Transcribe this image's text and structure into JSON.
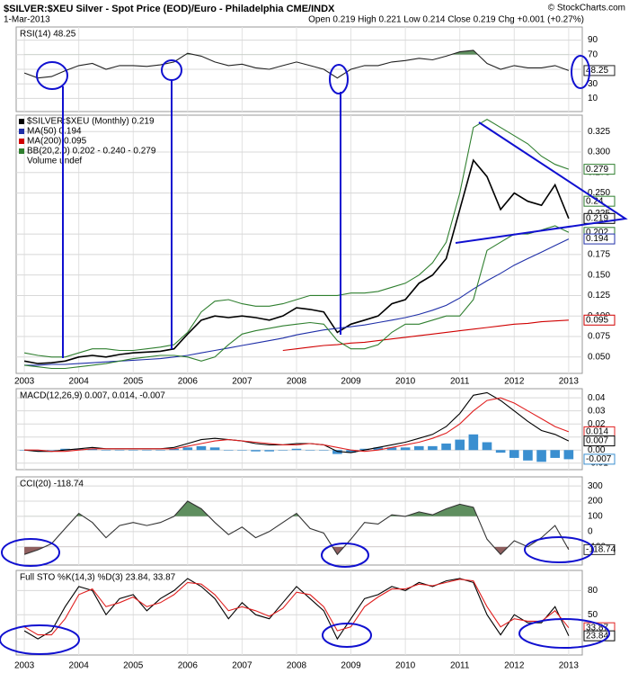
{
  "header": {
    "title": "$SILVER:$XEU Silver - Spot Price (EOD)/Euro - Philadelphia CME/INDX",
    "date": "1-Mar-2013",
    "quote": "Open 0.219 High 0.221 Low 0.214 Close 0.219 Chg +0.001 (+0.27%)",
    "credit": "© StockCharts.com"
  },
  "chart_data": {
    "x": [
      2003.0,
      2003.25,
      2003.5,
      2003.75,
      2004.0,
      2004.25,
      2004.5,
      2004.75,
      2005.0,
      2005.25,
      2005.5,
      2005.75,
      2006.0,
      2006.25,
      2006.5,
      2006.75,
      2007.0,
      2007.25,
      2007.5,
      2007.75,
      2008.0,
      2008.25,
      2008.5,
      2008.75,
      2009.0,
      2009.25,
      2009.5,
      2009.75,
      2010.0,
      2010.25,
      2010.5,
      2010.75,
      2011.0,
      2011.25,
      2011.5,
      2011.75,
      2012.0,
      2012.25,
      2012.5,
      2012.75,
      2013.0
    ],
    "xlim": [
      2002.85,
      2013.25
    ],
    "xticks": [
      2003,
      2004,
      2005,
      2006,
      2007,
      2008,
      2009,
      2010,
      2011,
      2012,
      2013
    ],
    "panels": [
      {
        "type": "line",
        "label": "RSI(14) 48.25",
        "ylim": [
          -8,
          108
        ],
        "yticks": [
          10,
          30,
          50,
          70,
          90
        ],
        "grid": true,
        "fills": [
          {
            "above": 70,
            "color": "#5f8f5f"
          }
        ],
        "series": [
          {
            "color": "#222222",
            "values": [
              45,
              38,
              40,
              48,
              55,
              58,
              50,
              55,
              55,
              54,
              56,
              60,
              72,
              68,
              60,
              55,
              57,
              52,
              50,
              55,
              60,
              55,
              50,
              38,
              50,
              55,
              55,
              60,
              62,
              65,
              63,
              68,
              74,
              76,
              58,
              50,
              55,
              52,
              52,
              55,
              48.25
            ]
          }
        ],
        "tags": [
          {
            "value": 48.25,
            "color": "#222222"
          }
        ]
      },
      {
        "type": "line",
        "ylim": [
          0.03,
          0.345
        ],
        "yticks": [
          {
            "value": 0.05,
            "label": "0.050"
          },
          {
            "value": 0.075,
            "label": "0.075"
          },
          {
            "value": 0.1,
            "label": "0.100"
          },
          {
            "value": 0.125,
            "label": "0.125"
          },
          {
            "value": 0.15,
            "label": "0.150"
          },
          {
            "value": 0.175,
            "label": "0.175"
          },
          {
            "value": 0.2,
            "label": "0.200"
          },
          {
            "value": 0.225,
            "label": "0.225"
          },
          {
            "value": 0.25,
            "label": "0.250"
          },
          {
            "value": 0.275,
            "label": "0.275"
          },
          {
            "value": 0.3,
            "label": "0.300"
          },
          {
            "value": 0.325,
            "label": "0.325"
          }
        ],
        "grid": true,
        "series": [
          {
            "name": "$SILVER:$XEU (Monthly) 0.219",
            "color": "#000000",
            "values": [
              0.045,
              0.042,
              0.043,
              0.045,
              0.05,
              0.052,
              0.05,
              0.053,
              0.055,
              0.056,
              0.057,
              0.06,
              0.078,
              0.095,
              0.1,
              0.098,
              0.1,
              0.098,
              0.095,
              0.1,
              0.11,
              0.108,
              0.105,
              0.08,
              0.09,
              0.095,
              0.1,
              0.115,
              0.12,
              0.14,
              0.15,
              0.17,
              0.23,
              0.29,
              0.27,
              0.23,
              0.25,
              0.24,
              0.235,
              0.26,
              0.219
            ]
          },
          {
            "name": "MA(50) 0.194",
            "color": "#1f2fa8",
            "values": [
              0.04,
              0.04,
              0.041,
              0.041,
              0.042,
              0.043,
              0.044,
              0.045,
              0.046,
              0.047,
              0.048,
              0.05,
              0.052,
              0.055,
              0.058,
              0.061,
              0.064,
              0.067,
              0.07,
              0.073,
              0.077,
              0.08,
              0.083,
              0.085,
              0.087,
              0.089,
              0.092,
              0.095,
              0.098,
              0.102,
              0.107,
              0.113,
              0.122,
              0.133,
              0.143,
              0.152,
              0.162,
              0.17,
              0.178,
              0.186,
              0.194
            ]
          },
          {
            "name": "MA(200) 0.095",
            "color": "#d00000",
            "values": [
              null,
              null,
              null,
              null,
              null,
              null,
              null,
              null,
              null,
              null,
              null,
              null,
              null,
              null,
              null,
              null,
              null,
              null,
              null,
              0.058,
              0.06,
              0.062,
              0.064,
              0.065,
              0.067,
              0.068,
              0.07,
              0.072,
              0.074,
              0.076,
              0.078,
              0.08,
              0.082,
              0.084,
              0.086,
              0.088,
              0.09,
              0.091,
              0.093,
              0.094,
              0.095
            ]
          },
          {
            "name": "BB(20,2.0) 0.202 - 0.240 - 0.279",
            "color": "#2f7f2f",
            "values": [
              0.055,
              0.052,
              0.05,
              0.05,
              0.055,
              0.06,
              0.06,
              0.058,
              0.058,
              0.06,
              0.062,
              0.065,
              0.08,
              0.105,
              0.118,
              0.12,
              0.115,
              0.112,
              0.112,
              0.115,
              0.12,
              0.125,
              0.125,
              0.125,
              0.128,
              0.128,
              0.13,
              0.135,
              0.14,
              0.15,
              0.165,
              0.19,
              0.25,
              0.33,
              0.34,
              0.33,
              0.32,
              0.31,
              0.295,
              0.285,
              0.279
            ]
          },
          {
            "color": "#2f7f2f",
            "values": [
              0.04,
              0.038,
              0.036,
              0.036,
              0.038,
              0.04,
              0.042,
              0.045,
              0.048,
              0.05,
              0.052,
              0.052,
              0.05,
              0.045,
              0.05,
              0.065,
              0.078,
              0.082,
              0.085,
              0.088,
              0.09,
              0.092,
              0.09,
              0.07,
              0.06,
              0.06,
              0.065,
              0.08,
              0.09,
              0.09,
              0.095,
              0.1,
              0.1,
              0.12,
              0.18,
              0.19,
              0.2,
              0.2,
              0.205,
              0.21,
              0.202
            ]
          }
        ],
        "notes": [
          "Volume undef"
        ],
        "tags": [
          {
            "value": 0.279,
            "color": "#2f7f2f"
          },
          {
            "value": 0.24,
            "color": "#2f7f2f"
          },
          {
            "value": 0.219,
            "color": "#000000"
          },
          {
            "value": 0.202,
            "color": "#2f7f2f"
          },
          {
            "value": 0.194,
            "color": "#1f2fa8"
          },
          {
            "value": 0.095,
            "color": "#d00000"
          }
        ]
      },
      {
        "type": "line",
        "label": "MACD(12,26,9) 0.007, 0.014, -0.007",
        "ylim": [
          -0.015,
          0.047
        ],
        "yticks": [
          {
            "value": -0.01,
            "label": "-0.01"
          },
          {
            "value": 0,
            "label": "0.00"
          },
          0.01,
          0.02,
          0.03,
          0.04
        ],
        "grid": true,
        "series": [
          {
            "kind": "bar",
            "color": "#3b8fd0",
            "values": [
              0.0,
              -0.001,
              0.0,
              0.001,
              0.001,
              0.001,
              0.0,
              0.0,
              0.0,
              0.0,
              0.0,
              0.001,
              0.002,
              0.003,
              0.002,
              0.0,
              0.0,
              -0.001,
              -0.001,
              0.0,
              0.001,
              0.0,
              0.0,
              -0.003,
              -0.002,
              0.001,
              0.002,
              0.002,
              0.002,
              0.003,
              0.003,
              0.005,
              0.008,
              0.012,
              0.006,
              -0.002,
              -0.006,
              -0.008,
              -0.009,
              -0.006,
              -0.007
            ]
          },
          {
            "color": "#000000",
            "values": [
              0.0,
              -0.001,
              -0.001,
              0.0,
              0.001,
              0.002,
              0.001,
              0.001,
              0.001,
              0.001,
              0.001,
              0.002,
              0.005,
              0.008,
              0.009,
              0.008,
              0.007,
              0.005,
              0.004,
              0.004,
              0.005,
              0.005,
              0.004,
              -0.001,
              -0.002,
              0.0,
              0.002,
              0.004,
              0.006,
              0.009,
              0.012,
              0.018,
              0.028,
              0.042,
              0.044,
              0.038,
              0.03,
              0.022,
              0.015,
              0.012,
              0.007
            ]
          },
          {
            "color": "#e02020",
            "values": [
              0.0,
              0.0,
              -0.001,
              -0.001,
              0.0,
              0.001,
              0.001,
              0.001,
              0.001,
              0.001,
              0.001,
              0.001,
              0.003,
              0.005,
              0.007,
              0.008,
              0.007,
              0.006,
              0.005,
              0.004,
              0.004,
              0.005,
              0.004,
              0.002,
              0.0,
              -0.001,
              0.0,
              0.002,
              0.004,
              0.006,
              0.009,
              0.013,
              0.02,
              0.03,
              0.038,
              0.04,
              0.036,
              0.03,
              0.024,
              0.018,
              0.014
            ]
          }
        ],
        "tags": [
          {
            "value": 0.014,
            "color": "#e02020"
          },
          {
            "value": 0.007,
            "color": "#000000"
          },
          {
            "value": -0.007,
            "color": "#3b8fd0"
          }
        ]
      },
      {
        "type": "line",
        "label": "CCI(20) -118.74",
        "ylim": [
          -220,
          360
        ],
        "yticks": [
          -100,
          0,
          100,
          200,
          300
        ],
        "grid": true,
        "fills": [
          {
            "above": 100,
            "color": "#5f8f5f"
          },
          {
            "below": -100,
            "color": "#8f5f5f"
          }
        ],
        "series": [
          {
            "color": "#333333",
            "values": [
              -150,
              -120,
              -80,
              20,
              120,
              60,
              -40,
              40,
              60,
              40,
              60,
              100,
              200,
              150,
              60,
              -20,
              30,
              -40,
              0,
              60,
              120,
              20,
              -10,
              -150,
              -50,
              60,
              50,
              110,
              100,
              130,
              110,
              150,
              180,
              160,
              -50,
              -150,
              -60,
              -100,
              -40,
              40,
              -118.74
            ]
          }
        ],
        "tags": [
          {
            "value": -118.74,
            "color": "#333333"
          }
        ]
      },
      {
        "type": "line",
        "label": "Full STO %K(14,3) %D(3) 23.84, 33.87",
        "ylim": [
          0,
          105
        ],
        "yticks": [
          20,
          50,
          80
        ],
        "grid": true,
        "series": [
          {
            "color": "#000000",
            "values": [
              30,
              20,
              30,
              60,
              85,
              80,
              50,
              70,
              75,
              55,
              70,
              80,
              95,
              85,
              70,
              45,
              65,
              50,
              45,
              65,
              85,
              70,
              55,
              20,
              45,
              70,
              75,
              85,
              80,
              90,
              85,
              92,
              95,
              90,
              50,
              25,
              50,
              40,
              40,
              60,
              23.84
            ]
          },
          {
            "color": "#e02020",
            "values": [
              35,
              25,
              25,
              45,
              75,
              82,
              60,
              65,
              72,
              60,
              65,
              75,
              90,
              88,
              75,
              55,
              60,
              55,
              48,
              58,
              78,
              75,
              60,
              30,
              35,
              60,
              72,
              82,
              82,
              88,
              86,
              90,
              94,
              92,
              60,
              35,
              45,
              42,
              42,
              55,
              33.87
            ]
          }
        ],
        "tags": [
          {
            "value": 33.87,
            "color": "#e02020"
          },
          {
            "value": 23.84,
            "color": "#000000"
          }
        ]
      }
    ]
  }
}
